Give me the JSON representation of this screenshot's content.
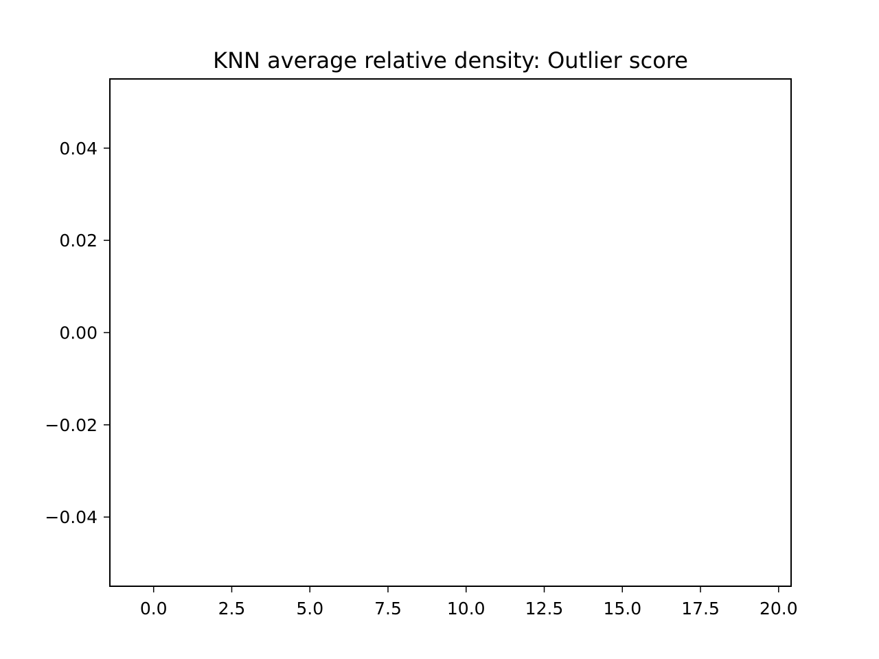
{
  "chart_data": {
    "type": "scatter",
    "title": "KNN average relative density: Outlier score",
    "xlabel": "",
    "ylabel": "",
    "xlim": [
      -1.4,
      20.4
    ],
    "ylim": [
      -0.055,
      0.055
    ],
    "x_ticks": [
      {
        "value": 0.0,
        "label": "0.0"
      },
      {
        "value": 2.5,
        "label": "2.5"
      },
      {
        "value": 5.0,
        "label": "5.0"
      },
      {
        "value": 7.5,
        "label": "7.5"
      },
      {
        "value": 10.0,
        "label": "10.0"
      },
      {
        "value": 12.5,
        "label": "12.5"
      },
      {
        "value": 15.0,
        "label": "15.0"
      },
      {
        "value": 17.5,
        "label": "17.5"
      },
      {
        "value": 20.0,
        "label": "20.0"
      }
    ],
    "y_ticks": [
      {
        "value": 0.04,
        "label": "0.04"
      },
      {
        "value": 0.02,
        "label": "0.02"
      },
      {
        "value": 0.0,
        "label": "0.00"
      },
      {
        "value": -0.02,
        "label": "−0.02"
      },
      {
        "value": -0.04,
        "label": "−0.04"
      }
    ],
    "series": [],
    "grid": false,
    "legend": "none"
  }
}
